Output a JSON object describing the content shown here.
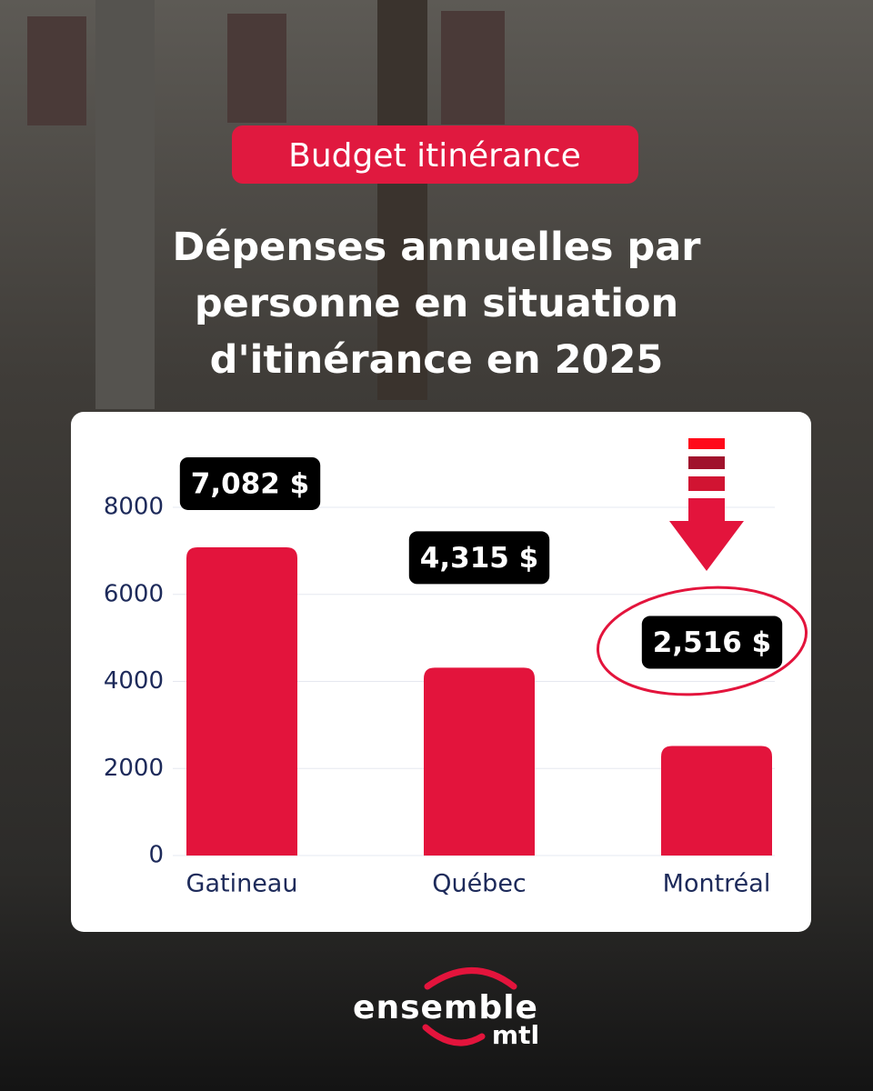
{
  "chart_data": {
    "type": "bar",
    "tag": "Budget itinérance",
    "title": [
      "Dépenses annuelles par",
      "personne en situation",
      "d'itinérance en 2025"
    ],
    "categories": [
      "Gatineau",
      "Québec",
      "Montréal"
    ],
    "values": [
      7082,
      4315,
      2516
    ],
    "value_labels": [
      "7,082 $",
      "4,315 $",
      "2,516 $"
    ],
    "color": "#e3143c",
    "ylim": [
      0,
      8000
    ],
    "yticks": [
      0,
      2000,
      4000,
      6000,
      8000
    ],
    "grid": true,
    "brand": {
      "name": "ensemble",
      "sub": "mtl"
    }
  }
}
